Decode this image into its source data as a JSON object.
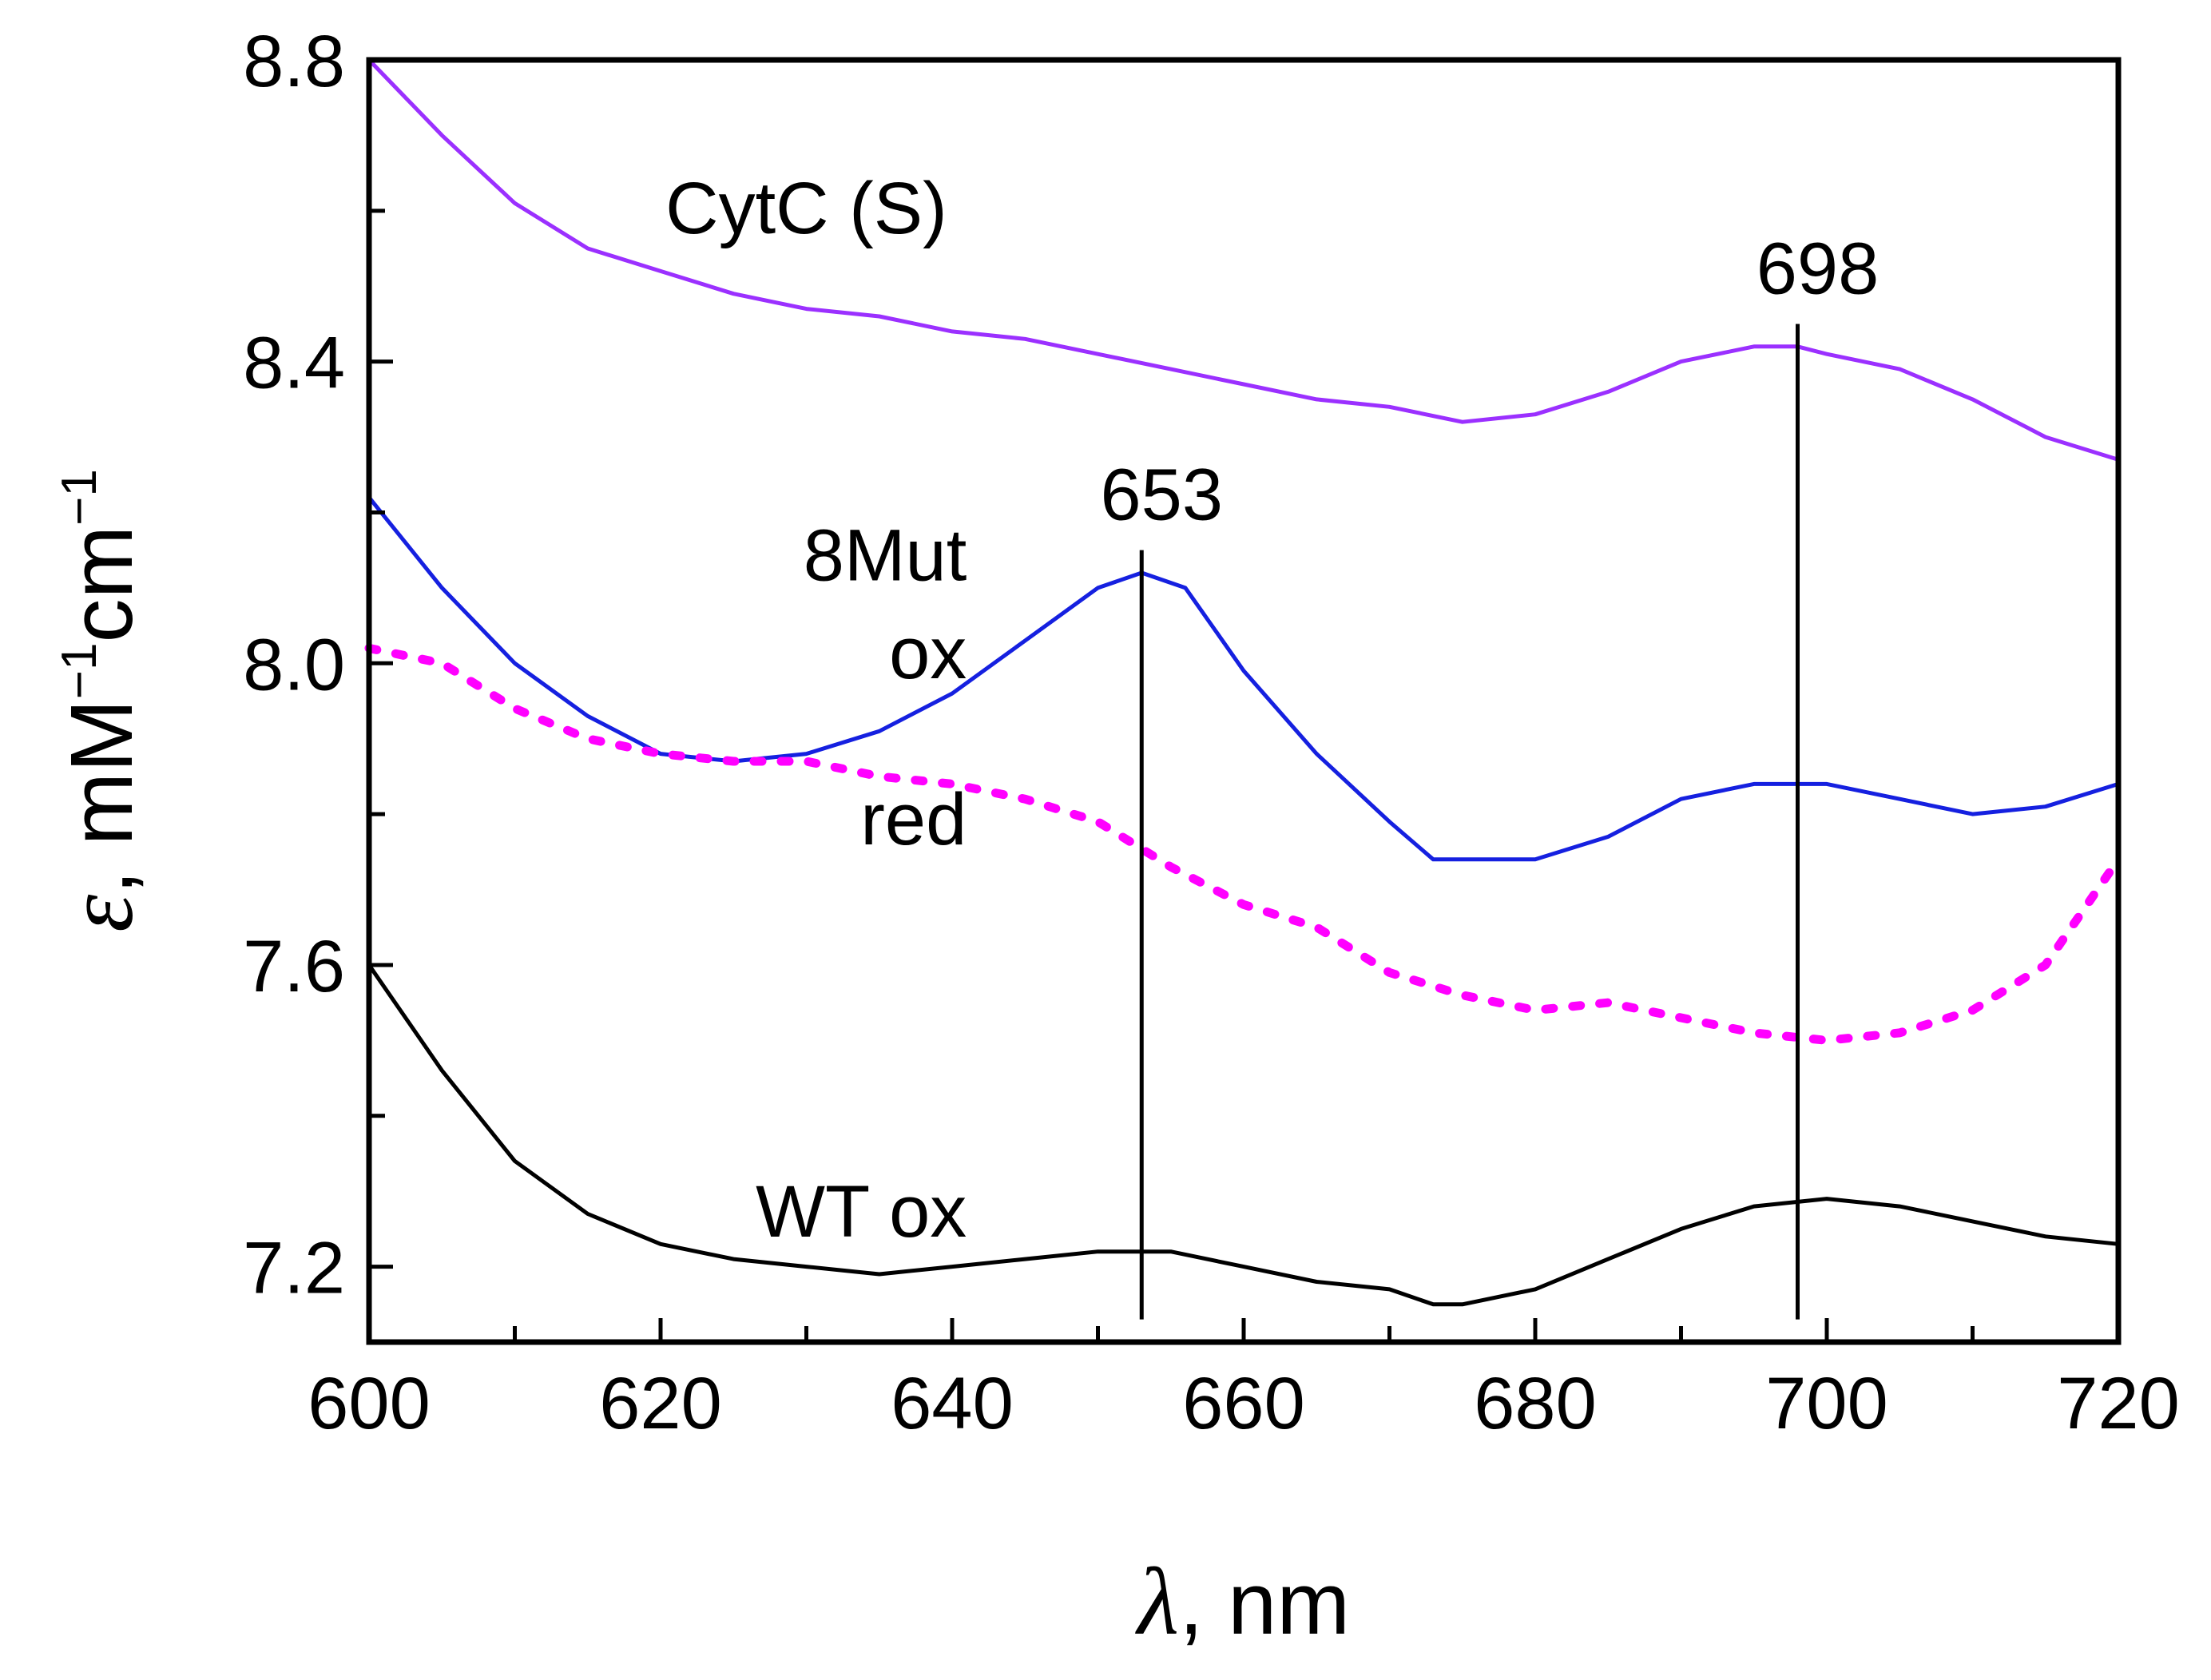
{
  "chart_data": {
    "type": "line",
    "title": "",
    "xlabel": {
      "symbol": "λ",
      "rest": ", nm"
    },
    "ylabel": {
      "symbol": "ε",
      "rest": ", mM",
      "sup1": "−1",
      "mid": "cm",
      "sup2": "−1"
    },
    "xlim": [
      600,
      720
    ],
    "ylim": [
      7.1,
      8.8
    ],
    "xticks": [
      600,
      620,
      640,
      660,
      680,
      700,
      720
    ],
    "xtick_labels": [
      "600",
      "620",
      "640",
      "660",
      "680",
      "700",
      "720"
    ],
    "yticks": [
      7.2,
      7.6,
      8.0,
      8.4,
      8.8
    ],
    "ytick_labels": [
      "7.2",
      "7.6",
      "8.0",
      "8.4",
      "8.8"
    ],
    "grid": false,
    "series": [
      {
        "name": "CytC (S)",
        "color": "#9B30FF",
        "style": "solid",
        "x": [
          600,
          605,
          610,
          615,
          620,
          625,
          630,
          635,
          640,
          645,
          650,
          655,
          660,
          665,
          670,
          675,
          680,
          685,
          690,
          695,
          698,
          700,
          705,
          710,
          715,
          720
        ],
        "y": [
          8.8,
          8.7,
          8.61,
          8.55,
          8.52,
          8.49,
          8.47,
          8.46,
          8.44,
          8.43,
          8.41,
          8.39,
          8.37,
          8.35,
          8.34,
          8.32,
          8.33,
          8.36,
          8.4,
          8.42,
          8.42,
          8.41,
          8.39,
          8.35,
          8.3,
          8.27
        ]
      },
      {
        "name": "8Mut ox",
        "color": "#1520E0",
        "style": "solid",
        "x": [
          600,
          605,
          610,
          615,
          620,
          625,
          630,
          635,
          640,
          645,
          650,
          653,
          656,
          660,
          665,
          670,
          673,
          675,
          680,
          685,
          690,
          695,
          700,
          705,
          710,
          715,
          720
        ],
        "y": [
          8.22,
          8.1,
          8.0,
          7.93,
          7.88,
          7.87,
          7.88,
          7.91,
          7.96,
          8.03,
          8.1,
          8.12,
          8.1,
          7.99,
          7.88,
          7.79,
          7.74,
          7.74,
          7.74,
          7.77,
          7.82,
          7.84,
          7.84,
          7.82,
          7.8,
          7.81,
          7.84
        ]
      },
      {
        "name": "8Mut red",
        "color": "#FF00FF",
        "style": "dotted",
        "x": [
          600,
          605,
          610,
          615,
          620,
          625,
          630,
          635,
          640,
          645,
          650,
          655,
          660,
          665,
          670,
          675,
          680,
          685,
          690,
          695,
          700,
          705,
          710,
          715,
          720
        ],
        "y": [
          8.02,
          8.0,
          7.94,
          7.9,
          7.88,
          7.87,
          7.87,
          7.85,
          7.84,
          7.82,
          7.79,
          7.73,
          7.68,
          7.65,
          7.59,
          7.56,
          7.54,
          7.55,
          7.53,
          7.51,
          7.5,
          7.51,
          7.54,
          7.6,
          7.74
        ]
      },
      {
        "name": "WT ox",
        "color": "#000000",
        "style": "solid",
        "x": [
          600,
          605,
          610,
          615,
          620,
          625,
          630,
          635,
          640,
          645,
          650,
          655,
          660,
          665,
          670,
          673,
          675,
          680,
          685,
          690,
          695,
          700,
          705,
          710,
          715,
          720
        ],
        "y": [
          7.6,
          7.46,
          7.34,
          7.27,
          7.23,
          7.21,
          7.2,
          7.19,
          7.2,
          7.21,
          7.22,
          7.22,
          7.2,
          7.18,
          7.17,
          7.15,
          7.15,
          7.17,
          7.21,
          7.25,
          7.28,
          7.29,
          7.28,
          7.26,
          7.24,
          7.23
        ]
      }
    ],
    "vertical_lines": [
      {
        "x": 653,
        "label": "653",
        "y_from": 7.13,
        "y_to": 8.15
      },
      {
        "x": 698,
        "label": "698",
        "y_from": 7.13,
        "y_to": 8.45
      }
    ],
    "annotations": [
      {
        "text": "CytC (S)",
        "x": 630,
        "y": 8.57,
        "anchor": "middle"
      },
      {
        "text": "8Mut",
        "x": 641,
        "y": 8.11,
        "anchor": "end"
      },
      {
        "text": "ox",
        "x": 641,
        "y": 7.98,
        "anchor": "end"
      },
      {
        "text": "red",
        "x": 641,
        "y": 7.76,
        "anchor": "end"
      },
      {
        "text": "WT ox",
        "x": 641,
        "y": 7.24,
        "anchor": "end"
      }
    ]
  }
}
